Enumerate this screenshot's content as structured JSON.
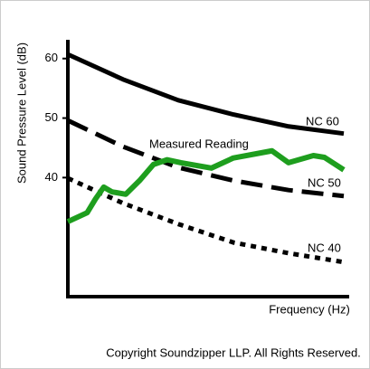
{
  "chart_data": {
    "type": "line",
    "ylabel": "Sound Pressure Level (dB)",
    "xlabel": "Frequency (Hz)",
    "footer": "Copyright Soundzipper LLP. All Rights Reserved.",
    "xlim": [
      0,
      10
    ],
    "ylim": [
      20,
      63
    ],
    "yticks": [
      40,
      50,
      60
    ],
    "series": [
      {
        "name": "NC 60",
        "color": "#000000",
        "style": "solid",
        "x": [
          0,
          2,
          4,
          6,
          8,
          10
        ],
        "values": [
          60.7,
          56.5,
          53.0,
          50.6,
          48.6,
          47.4
        ]
      },
      {
        "name": "NC 50",
        "color": "#000000",
        "style": "dashed",
        "x": [
          0,
          2,
          4,
          6,
          8,
          10
        ],
        "values": [
          49.6,
          45.2,
          41.7,
          39.5,
          37.9,
          36.9
        ]
      },
      {
        "name": "NC 40",
        "color": "#000000",
        "style": "dotted",
        "x": [
          0,
          2,
          4,
          6,
          8,
          10
        ],
        "values": [
          39.9,
          35.7,
          32.2,
          29.1,
          27.3,
          25.8
        ]
      },
      {
        "name": "Measured Reading",
        "color": "#1e9e1e",
        "style": "solid",
        "x": [
          0,
          0.7,
          1.0,
          1.3,
          1.6,
          2.1,
          2.6,
          3.1,
          3.6,
          4.1,
          5.2,
          6.0,
          7.4,
          8.0,
          8.9,
          9.3,
          10.0
        ],
        "values": [
          32.6,
          34.1,
          36.4,
          38.4,
          37.6,
          37.2,
          39.5,
          42.2,
          43.0,
          42.5,
          41.6,
          43.3,
          44.5,
          42.5,
          43.7,
          43.4,
          41.3
        ]
      }
    ]
  }
}
